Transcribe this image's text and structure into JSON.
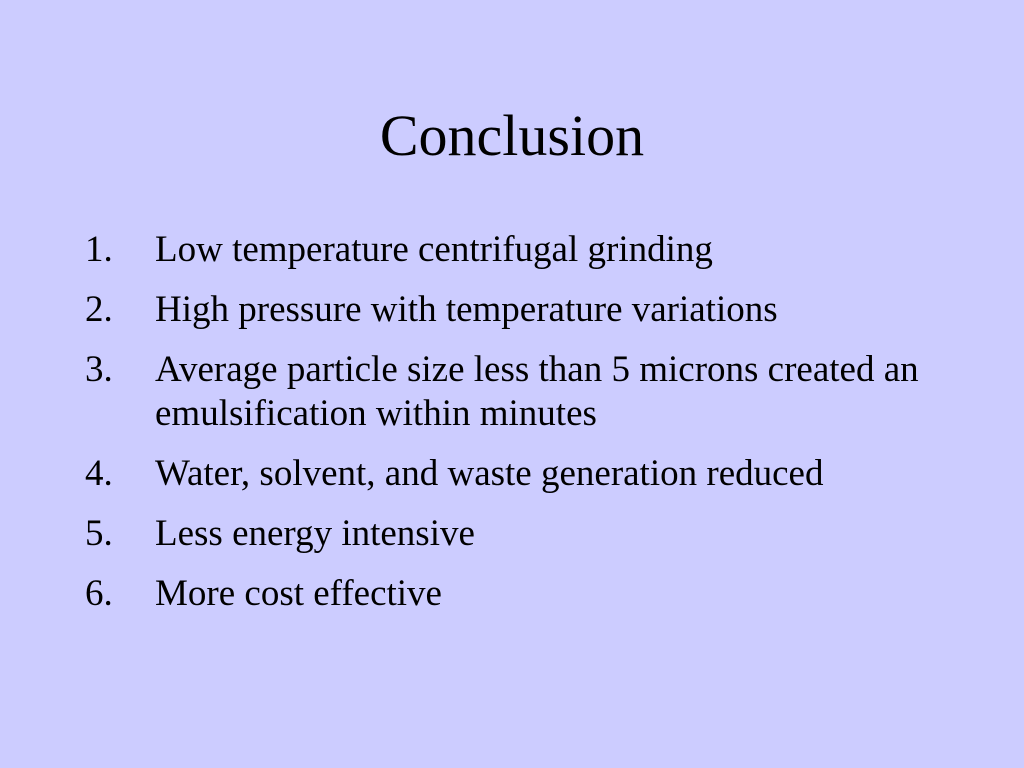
{
  "slide": {
    "title": "Conclusion",
    "background_color": "#ccccff",
    "items": [
      {
        "number": "1.",
        "text": "Low temperature centrifugal grinding"
      },
      {
        "number": "2.",
        "text": "High pressure with temperature variations"
      },
      {
        "number": "3.",
        "text": "Average particle size less than 5 microns created an emulsification within minutes"
      },
      {
        "number": "4.",
        "text": "Water, solvent, and waste generation reduced"
      },
      {
        "number": "5.",
        "text": "Less energy intensive"
      },
      {
        "number": "6.",
        "text": "More cost effective"
      }
    ]
  }
}
